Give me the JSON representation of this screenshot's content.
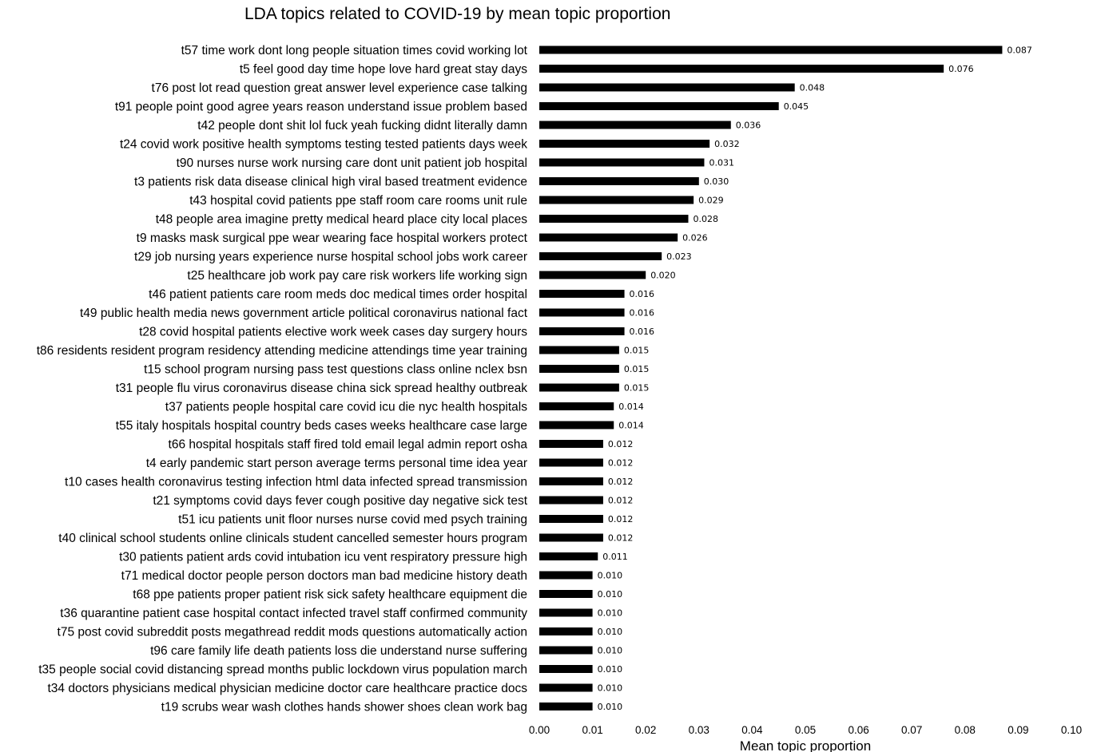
{
  "chart_data": {
    "type": "bar",
    "orientation": "horizontal",
    "title": "LDA topics related to COVID-19 by mean topic proportion",
    "xlabel": "Mean topic proportion",
    "ylabel": "",
    "xlim": [
      0,
      0.1
    ],
    "xticks": [
      "0.00",
      "0.01",
      "0.02",
      "0.03",
      "0.04",
      "0.05",
      "0.06",
      "0.07",
      "0.08",
      "0.09",
      "0.10"
    ],
    "grid": false,
    "legend": "none",
    "bar_color": "#000000",
    "categories": [
      "t57 time work dont long people situation times covid working lot",
      "t5 feel good day time hope love hard great stay days",
      "t76 post lot read question great answer level experience case talking",
      "t91 people point good agree years reason understand issue problem based",
      "t42 people dont shit lol fuck yeah fucking didnt  literally damn",
      "t24 covid work positive health symptoms testing tested patients days week",
      "t90 nurses nurse work nursing care dont unit patient job hospital",
      "t3 patients risk data disease clinical high viral based treatment evidence",
      "t43 hospital covid patients ppe staff room care rooms unit rule",
      "t48 people area imagine pretty medical heard place city local places",
      "t9 masks mask surgical ppe wear wearing face hospital workers protect",
      "t29 job nursing years experience nurse hospital school jobs work career",
      "t25 healthcare job work pay care risk workers life working sign",
      "t46 patient patients care room meds doc medical times order hospital",
      "t49 public health media news government article political coronavirus national fact",
      "t28 covid hospital patients elective work week cases day surgery hours",
      "t86 residents resident program residency attending medicine attendings time year training",
      "t15 school program nursing pass test questions class online nclex bsn",
      "t31 people flu virus coronavirus disease china sick spread healthy outbreak",
      "t37 patients people hospital care covid icu die nyc health hospitals",
      "t55 italy hospitals hospital country beds cases weeks healthcare case large",
      "t66 hospital hospitals staff fired told email legal admin report osha",
      "t4 early pandemic start person average terms personal time idea year",
      "t10 cases health coronavirus testing infection html data infected spread transmission",
      "t21 symptoms covid days fever cough positive day negative sick test",
      "t51 icu patients unit floor nurses nurse covid med psych training",
      "t40 clinical school students online clinicals student cancelled semester hours program",
      "t30 patients patient ards covid intubation icu vent respiratory pressure high",
      "t71 medical doctor people person doctors man bad medicine history death",
      "t68 ppe patients proper patient risk sick safety healthcare equipment die",
      "t36 quarantine patient case hospital contact infected travel staff confirmed community",
      "t75 post covid subreddit posts megathread reddit mods questions automatically action",
      "t96 care family life death patients loss die understand nurse suffering",
      "t35 people social covid distancing spread months public lockdown virus population march",
      "t34 doctors physicians medical physician medicine doctor care healthcare practice docs",
      "t19 scrubs wear wash clothes hands shower shoes clean work bag"
    ],
    "values": [
      0.087,
      0.076,
      0.048,
      0.045,
      0.036,
      0.032,
      0.031,
      0.03,
      0.029,
      0.028,
      0.026,
      0.023,
      0.02,
      0.016,
      0.016,
      0.016,
      0.015,
      0.015,
      0.015,
      0.014,
      0.014,
      0.012,
      0.012,
      0.012,
      0.012,
      0.012,
      0.012,
      0.011,
      0.01,
      0.01,
      0.01,
      0.01,
      0.01,
      0.01,
      0.01,
      0.01
    ],
    "value_labels": [
      "0.087",
      "0.076",
      "0.048",
      "0.045",
      "0.036",
      "0.032",
      "0.031",
      "0.030",
      "0.029",
      "0.028",
      "0.026",
      "0.023",
      "0.020",
      "0.016",
      "0.016",
      "0.016",
      "0.015",
      "0.015",
      "0.015",
      "0.014",
      "0.014",
      "0.012",
      "0.012",
      "0.012",
      "0.012",
      "0.012",
      "0.012",
      "0.011",
      "0.010",
      "0.010",
      "0.010",
      "0.010",
      "0.010",
      "0.010",
      "0.010",
      "0.010"
    ]
  }
}
